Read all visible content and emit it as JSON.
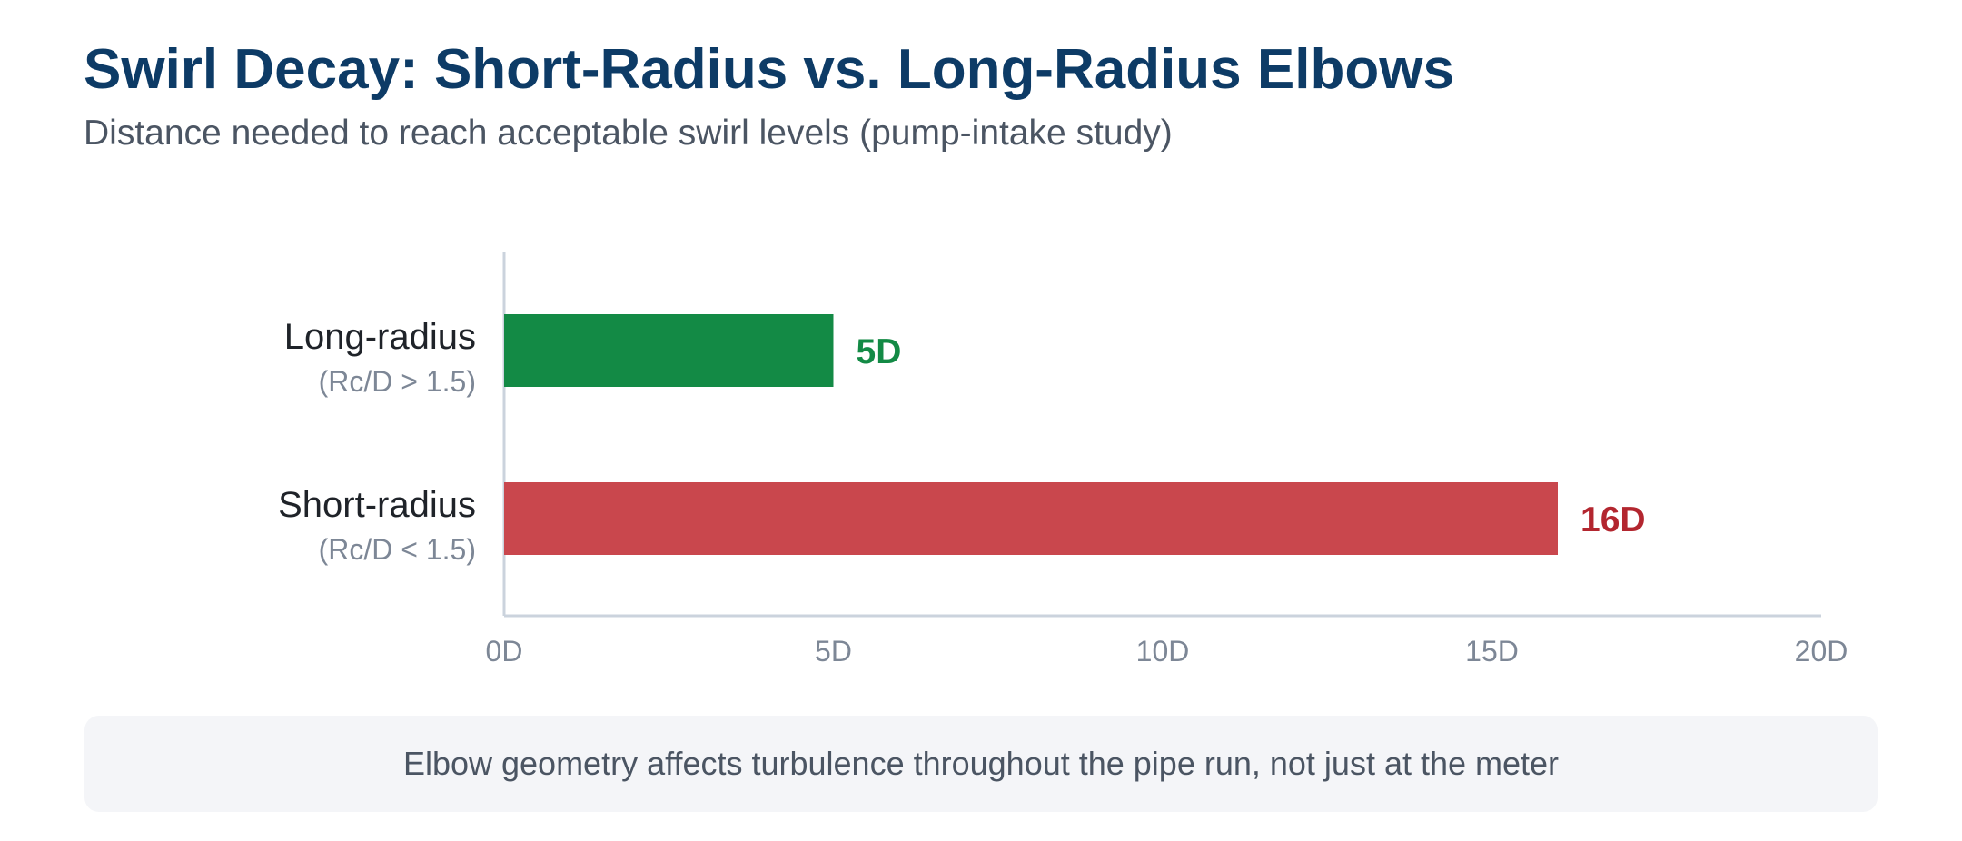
{
  "header": {
    "title": "Swirl Decay: Short-Radius vs. Long-Radius Elbows",
    "subtitle": "Distance needed to reach acceptable swirl levels (pump-intake study)"
  },
  "chart_data": {
    "type": "bar",
    "orientation": "horizontal",
    "categories": [
      {
        "label": "Long-radius",
        "sublabel": "(Rc/D > 1.5)",
        "value": 5,
        "value_label": "5D",
        "color": "#138a45"
      },
      {
        "label": "Short-radius",
        "sublabel": "(Rc/D < 1.5)",
        "value": 16,
        "value_label": "16D",
        "color": "#c9474d"
      }
    ],
    "value_label_colors": [
      "#138a45",
      "#b3262f"
    ],
    "xlim": [
      0,
      20
    ],
    "ticks": [
      {
        "value": 0,
        "label": "0D"
      },
      {
        "value": 5,
        "label": "5D"
      },
      {
        "value": 10,
        "label": "10D"
      },
      {
        "value": 15,
        "label": "15D"
      },
      {
        "value": 20,
        "label": "20D"
      }
    ],
    "grid": false,
    "legend": "none"
  },
  "note": {
    "text": "Elbow geometry affects turbulence throughout the pipe run, not just at the meter"
  }
}
